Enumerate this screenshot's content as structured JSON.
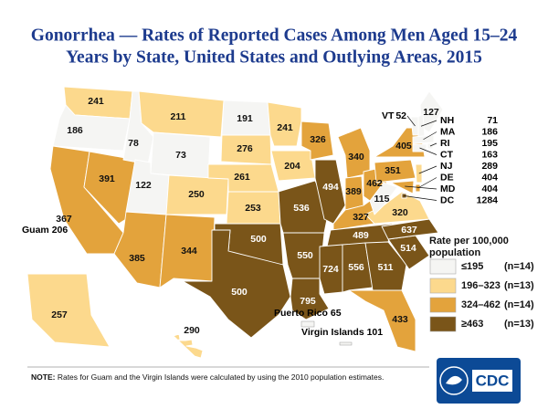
{
  "title_lines": [
    "Gonorrhea — Rates of Reported Cases Among Men Aged 15–24",
    "Years by State, United States and Outlying Areas, 2015"
  ],
  "states": [
    {
      "rate": 241
    },
    {
      "rate": 186
    },
    {
      "rate": 367
    },
    {
      "rate": 391
    },
    {
      "rate": 78
    },
    {
      "rate": 211
    },
    {
      "rate": 73
    },
    {
      "rate": 122
    },
    {
      "rate": 385
    },
    {
      "rate": 250
    },
    {
      "rate": 344
    },
    {
      "rate": 191
    },
    {
      "rate": 276
    },
    {
      "rate": 261
    },
    {
      "rate": 253
    },
    {
      "rate": 500
    },
    {
      "rate": 500
    },
    {
      "rate": 241
    },
    {
      "rate": 204
    },
    {
      "rate": 536
    },
    {
      "rate": 550
    },
    {
      "rate": 795
    },
    {
      "rate": 326
    },
    {
      "rate": 494
    },
    {
      "rate": 340
    },
    {
      "rate": 389
    },
    {
      "rate": 462
    },
    {
      "rate": 327
    },
    {
      "rate": 489
    },
    {
      "rate": 724
    },
    {
      "rate": 556
    },
    {
      "rate": 511
    },
    {
      "rate": 433
    },
    {
      "rate": 514
    },
    {
      "rate": 637
    },
    {
      "rate": 320
    },
    {
      "rate": 115
    },
    {
      "rate": 351
    },
    {
      "rate": 405
    },
    {
      "rate": 127
    },
    {
      "rate": 257
    },
    {
      "rate": 290
    },
    {
      "name": "VT",
      "rate": 52
    },
    {
      "name": "NH",
      "rate": 71
    },
    {
      "name": "MA",
      "rate": 186
    },
    {
      "name": "RI",
      "rate": 195
    },
    {
      "name": "CT",
      "rate": 163
    },
    {
      "name": "NJ",
      "rate": 289
    },
    {
      "name": "DE",
      "rate": 404
    },
    {
      "name": "MD",
      "rate": 404
    },
    {
      "name": "DC",
      "rate": 1284
    }
  ],
  "areas": [
    {
      "name": "Guam",
      "rate": 206
    },
    {
      "name": "Puerto Rico",
      "rate": 65
    },
    {
      "name": "Virgin Islands",
      "rate": 101
    }
  ],
  "legend": {
    "title_lines": [
      "Rate per 100,000",
      "population"
    ],
    "items": [
      {
        "label": "≤195",
        "max": 195,
        "count": "(n=14)",
        "color": "#f5f5f3"
      },
      {
        "label": "196–323",
        "min": 196,
        "max": 323,
        "count": "(n=13)",
        "color": "#fcd98d"
      },
      {
        "label": "324–462",
        "min": 324,
        "max": 462,
        "count": "(n=14)",
        "color": "#e3a33c"
      },
      {
        "label": "≥463",
        "min": 463,
        "count": "(n=13)",
        "color": "#7a5519"
      }
    ]
  },
  "note_label": "NOTE:",
  "note": "Rates for Guam and the Virgin Islands were calculated by using the 2010 population estimates.",
  "logo": "CDC"
}
